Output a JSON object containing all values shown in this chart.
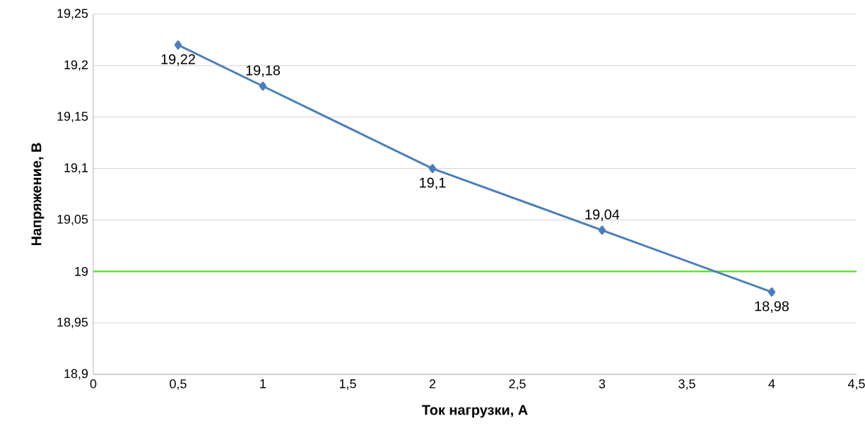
{
  "chart_data": {
    "type": "line",
    "xlabel": "Ток нагрузки, А",
    "ylabel": "Напряжение, В",
    "x": [
      0.5,
      1,
      2,
      3,
      4
    ],
    "series": [
      {
        "color": "#4a7ebb",
        "values": [
          19.22,
          19.18,
          19.1,
          19.04,
          18.98
        ],
        "value_labels": [
          "19,22",
          "19,18",
          "19,1",
          "19,04",
          "18,98"
        ]
      }
    ],
    "xlim": [
      0,
      4.5
    ],
    "xticks": [
      0,
      {
        "value": 0.5,
        "label": "0,5"
      },
      1,
      {
        "value": 1.5,
        "label": "1,5"
      },
      2,
      {
        "value": 2.5,
        "label": "2,5"
      },
      3,
      {
        "value": 3.5,
        "label": "3,5"
      },
      4,
      {
        "value": 4.5,
        "label": "4,5"
      }
    ],
    "ylim": [
      18.9,
      19.25
    ],
    "yticks": [
      {
        "value": 18.9,
        "label": "18,9"
      },
      {
        "value": 18.95,
        "label": "18,95"
      },
      19,
      {
        "value": 19.05,
        "label": "19,05"
      },
      {
        "value": 19.1,
        "label": "19,1"
      },
      {
        "value": 19.15,
        "label": "19,15"
      },
      {
        "value": 19.2,
        "label": "19,2"
      },
      {
        "value": 19.25,
        "label": "19,25"
      }
    ],
    "grid": "y",
    "marker": "diamond",
    "line_style": "solid",
    "ref_lines": [
      {
        "axis": "y",
        "value": 19,
        "color": "#66dd44"
      }
    ]
  }
}
